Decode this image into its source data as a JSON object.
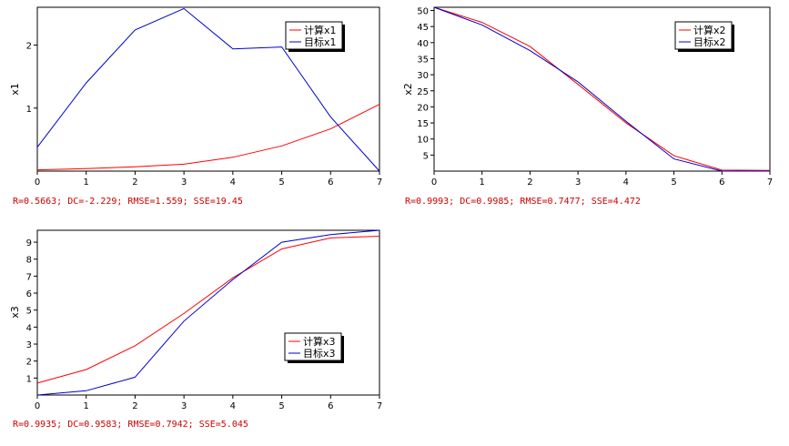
{
  "chart_data": [
    {
      "type": "line",
      "ylabel": "x1",
      "xlim": [
        0,
        7
      ],
      "ylim": [
        0,
        2.6
      ],
      "x_ticks": [
        0,
        1,
        2,
        3,
        4,
        5,
        6,
        7
      ],
      "y_ticks": [
        1,
        2
      ],
      "x": [
        0,
        1,
        2,
        3,
        4,
        5,
        6,
        7
      ],
      "series": [
        {
          "name": "计算x1",
          "color": "#ff0000",
          "values": [
            0.02,
            0.04,
            0.07,
            0.11,
            0.22,
            0.4,
            0.67,
            1.06
          ]
        },
        {
          "name": "目标x1",
          "color": "#0000cc",
          "values": [
            0.38,
            1.4,
            2.24,
            2.58,
            1.94,
            1.97,
            0.86,
            0.0
          ]
        }
      ],
      "legend": "top-right",
      "stats": "R=0.5663; DC=-2.229; RMSE=1.559; SSE=19.45"
    },
    {
      "type": "line",
      "ylabel": "x2",
      "xlim": [
        0,
        7
      ],
      "ylim": [
        0,
        51
      ],
      "x_ticks": [
        0,
        1,
        2,
        3,
        4,
        5,
        6,
        7
      ],
      "y_ticks": [
        5,
        10,
        15,
        20,
        25,
        30,
        35,
        40,
        45,
        50
      ],
      "x": [
        0,
        1,
        2,
        3,
        4,
        5,
        6,
        7
      ],
      "series": [
        {
          "name": "计算x2",
          "color": "#ff0000",
          "values": [
            51.0,
            46.3,
            38.8,
            27.0,
            15.0,
            4.8,
            0.3,
            0.2
          ]
        },
        {
          "name": "目标x2",
          "color": "#0000cc",
          "values": [
            51.0,
            45.5,
            37.5,
            27.8,
            15.5,
            3.8,
            0.0,
            0.0
          ]
        }
      ],
      "legend": "top-right",
      "stats": "R=0.9993; DC=0.9985; RMSE=0.7477; SSE=4.472"
    },
    {
      "type": "line",
      "ylabel": "x3",
      "xlim": [
        0,
        7
      ],
      "ylim": [
        0,
        9.7
      ],
      "x_ticks": [
        0,
        1,
        2,
        3,
        4,
        5,
        6,
        7
      ],
      "y_ticks": [
        1,
        2,
        3,
        4,
        5,
        6,
        7,
        8,
        9
      ],
      "x": [
        0,
        1,
        2,
        3,
        4,
        5,
        6,
        7
      ],
      "series": [
        {
          "name": "计算x3",
          "color": "#ff0000",
          "values": [
            0.7,
            1.5,
            2.9,
            4.8,
            6.9,
            8.6,
            9.25,
            9.35
          ]
        },
        {
          "name": "目标x3",
          "color": "#0000cc",
          "values": [
            0.0,
            0.25,
            1.05,
            4.35,
            6.8,
            9.0,
            9.45,
            9.7
          ]
        }
      ],
      "legend": "bottom-right",
      "stats": "R=0.9935; DC=0.9583; RMSE=0.7942; SSE=5.045"
    }
  ]
}
